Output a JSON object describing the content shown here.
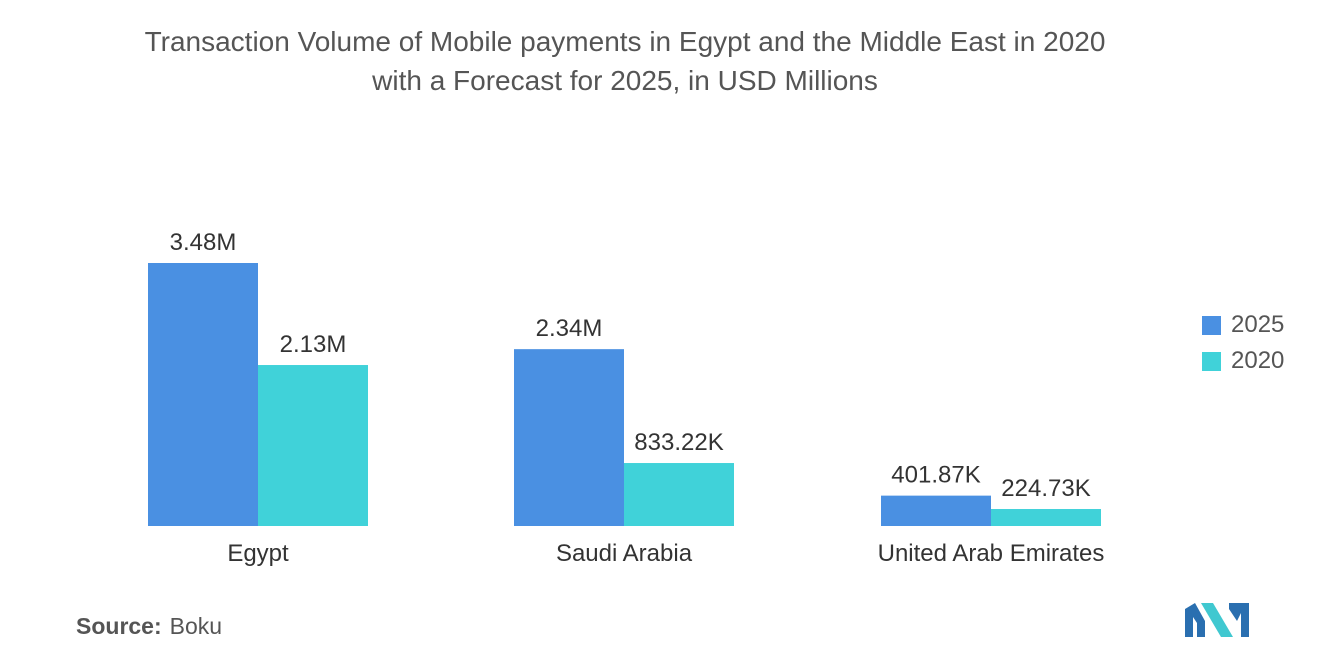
{
  "title_lines": [
    "Transaction Volume of Mobile payments in Egypt and the Middle East in 2020",
    "with a Forecast for 2025, in USD Millions"
  ],
  "source": {
    "label": "Source:",
    "value": "Boku"
  },
  "colors": {
    "series_2025": "#4a90e2",
    "series_2020": "#40d2d9"
  },
  "chart_data": {
    "type": "bar",
    "categories": [
      "Egypt",
      "Saudi Arabia",
      "United Arab Emirates"
    ],
    "series": [
      {
        "name": "2025",
        "values": [
          3480000,
          2340000,
          401870
        ],
        "labels": [
          "3.48M",
          "2.34M",
          "401.87K"
        ]
      },
      {
        "name": "2020",
        "values": [
          2130000,
          833220,
          224730
        ],
        "labels": [
          "2.13M",
          "833.22K",
          "224.73K"
        ]
      }
    ],
    "title": "Transaction Volume of Mobile payments in Egypt and the Middle East in 2020 with a Forecast for 2025, in USD Millions",
    "xlabel": "",
    "ylabel": "",
    "grid": false,
    "legend_position": "right"
  }
}
